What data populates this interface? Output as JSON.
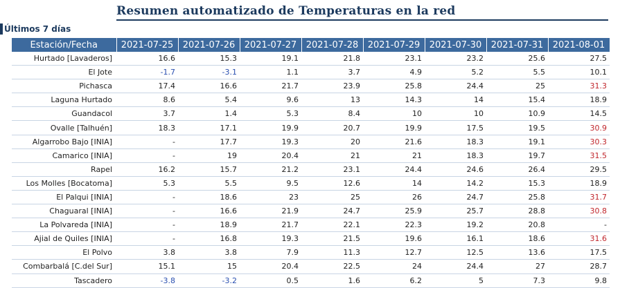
{
  "header": {
    "title": "Resumen automatizado de Temperaturas en la red",
    "subtitle": "Últimos 7 días"
  },
  "table": {
    "station_header": "Estación/Fecha",
    "dates": [
      "2021-07-25",
      "2021-07-26",
      "2021-07-27",
      "2021-07-28",
      "2021-07-29",
      "2021-07-30",
      "2021-07-31",
      "2021-08-01"
    ],
    "colors": {
      "header_bg": "#3d6a9e",
      "negative": "#2a4fb0",
      "high": "#c0262c"
    },
    "rows": [
      {
        "station": "Hurtado [Lavaderos]",
        "values": [
          "16.6",
          "15.3",
          "19.1",
          "21.8",
          "23.1",
          "23.2",
          "25.6",
          "27.5"
        ]
      },
      {
        "station": "El Jote",
        "values": [
          "-1.7",
          "-3.1",
          "1.1",
          "3.7",
          "4.9",
          "5.2",
          "5.5",
          "10.1"
        ]
      },
      {
        "station": "Pichasca",
        "values": [
          "17.4",
          "16.6",
          "21.7",
          "23.9",
          "25.8",
          "24.4",
          "25",
          "31.3"
        ]
      },
      {
        "station": "Laguna Hurtado",
        "values": [
          "8.6",
          "5.4",
          "9.6",
          "13",
          "14.3",
          "14",
          "15.4",
          "18.9"
        ]
      },
      {
        "station": "Guandacol",
        "values": [
          "3.7",
          "1.4",
          "5.3",
          "8.4",
          "10",
          "10",
          "10.9",
          "14.5"
        ]
      },
      {
        "station": "Ovalle [Talhuén]",
        "values": [
          "18.3",
          "17.1",
          "19.9",
          "20.7",
          "19.9",
          "17.5",
          "19.5",
          "30.9"
        ]
      },
      {
        "station": "Algarrobo Bajo [INIA]",
        "values": [
          "-",
          "17.7",
          "19.3",
          "20",
          "21.6",
          "18.3",
          "19.1",
          "30.3"
        ]
      },
      {
        "station": "Camarico [INIA]",
        "values": [
          "-",
          "19",
          "20.4",
          "21",
          "21",
          "18.3",
          "19.7",
          "31.5"
        ]
      },
      {
        "station": "Rapel",
        "values": [
          "16.2",
          "15.7",
          "21.2",
          "23.1",
          "24.4",
          "24.6",
          "26.4",
          "29.5"
        ]
      },
      {
        "station": "Los Molles [Bocatoma]",
        "values": [
          "5.3",
          "5.5",
          "9.5",
          "12.6",
          "14",
          "14.2",
          "15.3",
          "18.9"
        ]
      },
      {
        "station": "El Palqui [INIA]",
        "values": [
          "-",
          "18.6",
          "23",
          "25",
          "26",
          "24.7",
          "25.8",
          "31.7"
        ]
      },
      {
        "station": "Chaguaral [INIA]",
        "values": [
          "-",
          "16.6",
          "21.9",
          "24.7",
          "25.9",
          "25.7",
          "28.8",
          "30.8"
        ]
      },
      {
        "station": "La Polvareda [INIA]",
        "values": [
          "-",
          "18.9",
          "21.7",
          "22.1",
          "22.3",
          "19.2",
          "20.8",
          "-"
        ]
      },
      {
        "station": "Ajial de Quiles [INIA]",
        "values": [
          "-",
          "16.8",
          "19.3",
          "21.5",
          "19.6",
          "16.1",
          "18.6",
          "31.6"
        ]
      },
      {
        "station": "El Polvo",
        "values": [
          "3.8",
          "3.8",
          "7.9",
          "11.3",
          "12.7",
          "12.5",
          "13.6",
          "17.5"
        ]
      },
      {
        "station": "Combarbalá [C.del Sur]",
        "values": [
          "15.1",
          "15",
          "20.4",
          "22.5",
          "24",
          "24.4",
          "27",
          "28.7"
        ]
      },
      {
        "station": "Tascadero",
        "values": [
          "-3.8",
          "-3.2",
          "0.5",
          "1.6",
          "6.2",
          "5",
          "7.3",
          "9.8"
        ]
      }
    ]
  }
}
